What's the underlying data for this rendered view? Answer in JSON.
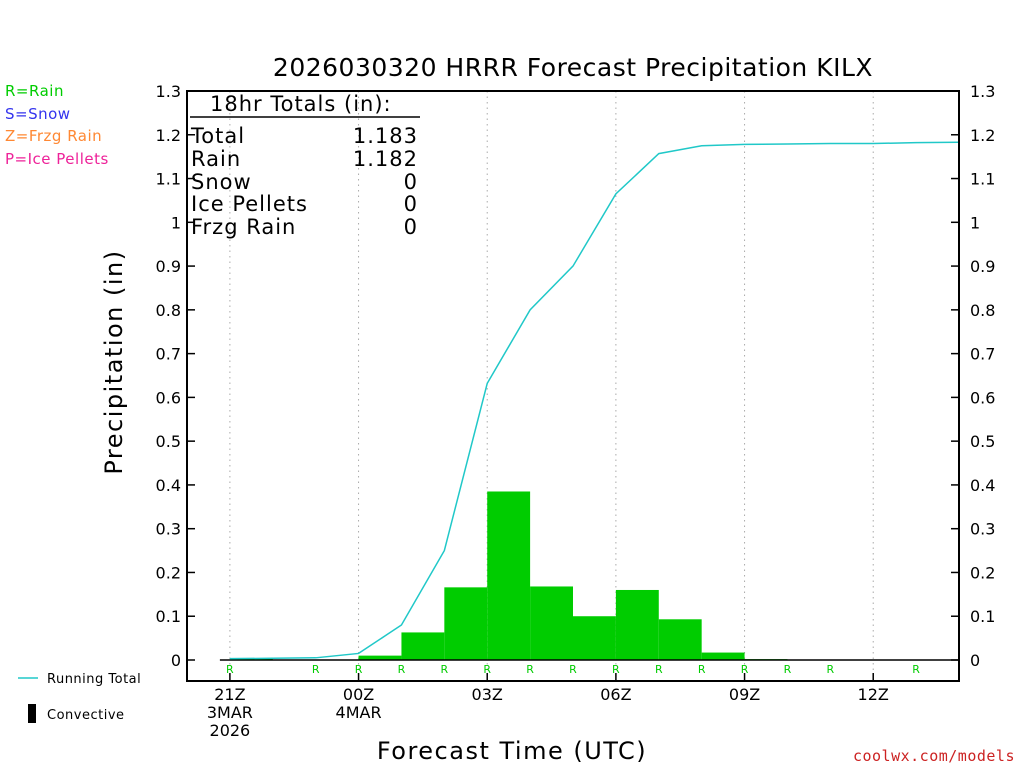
{
  "chart_data": {
    "type": "bar",
    "title": "2026030320 HRRR Forecast Precipitation KILX",
    "xlabel": "Forecast Time (UTC)",
    "ylabel": "Precipitation (in)",
    "ylim": [
      0,
      1.3
    ],
    "y_ticks": [
      "0",
      "0.1",
      "0.2",
      "0.3",
      "0.4",
      "0.5",
      "0.6",
      "0.7",
      "0.8",
      "0.9",
      "1",
      "1.1",
      "1.2",
      "1.3"
    ],
    "xlim_hours": [
      -1,
      17
    ],
    "x_ticks": [
      {
        "hour": 0,
        "lines": [
          "21Z",
          "3MAR",
          "2026"
        ]
      },
      {
        "hour": 3,
        "lines": [
          "00Z",
          "4MAR"
        ]
      },
      {
        "hour": 6,
        "lines": [
          "03Z"
        ]
      },
      {
        "hour": 9,
        "lines": [
          "06Z"
        ]
      },
      {
        "hour": 12,
        "lines": [
          "09Z"
        ]
      },
      {
        "hour": 15,
        "lines": [
          "12Z"
        ]
      }
    ],
    "hours": [
      0,
      1,
      2,
      3,
      4,
      5,
      6,
      7,
      8,
      9,
      10,
      11,
      12,
      13,
      14,
      15,
      16
    ],
    "hourly_precip": [
      0.003,
      0.0,
      0.0,
      0.01,
      0.063,
      0.166,
      0.385,
      0.168,
      0.1,
      0.16,
      0.093,
      0.017,
      0.002,
      0.001,
      0.001,
      0.0,
      0.001
    ],
    "running_total": [
      0.003,
      0.004,
      0.005,
      0.015,
      0.08,
      0.25,
      0.632,
      0.8,
      0.9,
      1.065,
      1.157,
      1.175,
      1.178,
      1.179,
      1.18,
      1.18,
      1.182,
      1.183
    ],
    "running_total_hours": [
      0,
      1,
      2,
      3,
      4,
      5,
      6,
      7,
      8,
      9,
      10,
      11,
      12,
      13,
      14,
      15,
      16,
      17
    ],
    "ptype_hours": [
      0,
      2,
      3,
      4,
      5,
      6,
      7,
      8,
      9,
      10,
      11,
      12,
      13,
      14,
      16
    ],
    "ptype_label": "R",
    "grid": "dotted vertical",
    "colors": {
      "bars": "#00cc00",
      "running_total": "#20c8c8",
      "ptype_label": "#00cc00",
      "grid": "#aaaaaa"
    }
  },
  "totals_box": {
    "header": "18hr Totals (in):",
    "rows": [
      {
        "label": "Total",
        "value": "1.183"
      },
      {
        "label": "Rain",
        "value": "1.182"
      },
      {
        "label": "Snow",
        "value": "0"
      },
      {
        "label": "Ice Pellets",
        "value": "0"
      },
      {
        "label": "Frzg Rain",
        "value": "0"
      }
    ]
  },
  "ptype_legend": [
    {
      "text": "R=Rain",
      "color": "#00cc00"
    },
    {
      "text": "S=Snow",
      "color": "#3333ee"
    },
    {
      "text": "Z=Frzg Rain",
      "color": "#ff8833"
    },
    {
      "text": "P=Ice Pellets",
      "color": "#ee2299"
    }
  ],
  "series_legend": {
    "running_total": "Running Total",
    "convective": "Convective"
  },
  "credit": {
    "text": "coolwx.com/models",
    "color": "#cc2222"
  }
}
